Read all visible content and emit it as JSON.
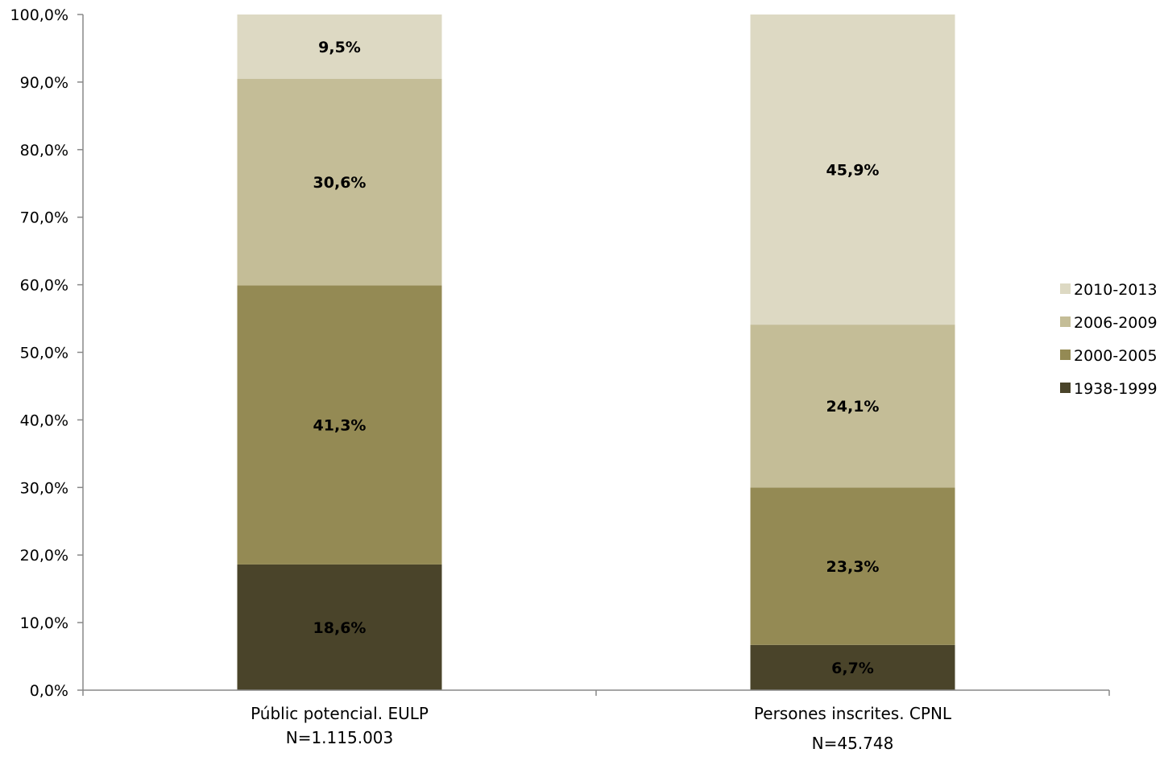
{
  "chart_data": {
    "type": "bar",
    "stacked": true,
    "categories": [
      {
        "label": "Públic potencial. EULP",
        "sublabel": "N=1.115.003"
      },
      {
        "label": "Persones inscrites. CPNL",
        "sublabel": "N=45.748"
      }
    ],
    "series": [
      {
        "name": "1938-1999",
        "color": "#4a442a",
        "values": [
          18.6,
          6.7
        ],
        "labels": [
          "18,6%",
          "6,7%"
        ]
      },
      {
        "name": "2000-2005",
        "color": "#948a54",
        "values": [
          41.3,
          23.3
        ],
        "labels": [
          "41,3%",
          "23,3%"
        ]
      },
      {
        "name": "2006-2009",
        "color": "#c4bd97",
        "values": [
          30.6,
          24.1
        ],
        "labels": [
          "30,6%",
          "24,1%"
        ]
      },
      {
        "name": "2010-2013",
        "color": "#ddd9c3",
        "values": [
          9.5,
          45.9
        ],
        "labels": [
          "9,5%",
          "45,9%"
        ]
      }
    ],
    "ylim": [
      0,
      100
    ],
    "yticks": [
      "0,0%",
      "10,0%",
      "20,0%",
      "30,0%",
      "40,0%",
      "50,0%",
      "60,0%",
      "70,0%",
      "80,0%",
      "90,0%",
      "100,0%"
    ],
    "legend_position": "right",
    "legend_order": [
      "2010-2013",
      "2006-2009",
      "2000-2005",
      "1938-1999"
    ],
    "grid": false
  }
}
